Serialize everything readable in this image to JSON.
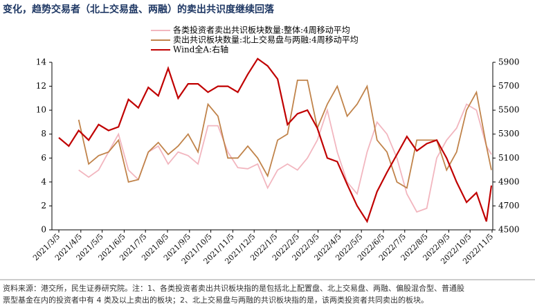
{
  "chart_data": {
    "type": "line",
    "title": "变化，趋势交易者（北上交易盘、两融）的卖出共识度继续回落",
    "footnote": [
      "资料来源：港交所，民生证券研究院。注：1、各类投资者卖出共识板块指的是包括北上配置盘、北上交易盘、两融、偏股混合型、普通股",
      "票型基金在内的投资者中有 4 类及以上卖出的板块；2、北上交易盘与两融的共识板块指的是，该两类投资者共同卖出的板块。"
    ],
    "x": [
      "2021/3/5",
      "2021/3/19",
      "2021/4/2",
      "2021/4/16",
      "2021/4/30",
      "2021/5/14",
      "2021/5/28",
      "2021/6/11",
      "2021/6/25",
      "2021/7/9",
      "2021/7/23",
      "2021/8/6",
      "2021/8/20",
      "2021/9/3",
      "2021/9/17",
      "2021/10/1",
      "2021/10/15",
      "2021/10/29",
      "2021/11/12",
      "2021/11/26",
      "2021/12/10",
      "2021/12/24",
      "2022/1/7",
      "2022/1/21",
      "2022/2/4",
      "2022/2/18",
      "2022/3/4",
      "2022/3/18",
      "2022/4/1",
      "2022/4/15",
      "2022/4/29",
      "2022/5/13",
      "2022/5/27",
      "2022/6/10",
      "2022/6/24",
      "2022/7/8",
      "2022/7/22",
      "2022/8/5",
      "2022/8/19",
      "2022/9/2",
      "2022/9/16",
      "2022/9/30",
      "2022/10/14",
      "2022/10/28",
      "2022/11/4"
    ],
    "xlim": [
      "2021/3/5",
      "2022/11/5"
    ],
    "xticks": [
      "2021/3/5",
      "2021/4/5",
      "2021/5/5",
      "2021/6/5",
      "2021/7/5",
      "2021/8/5",
      "2021/9/5",
      "2021/10/5",
      "2021/11/5",
      "2021/12/5",
      "2022/1/5",
      "2022/2/5",
      "2022/3/5",
      "2022/4/5",
      "2022/5/5",
      "2022/6/5",
      "2022/7/5",
      "2022/8/5",
      "2022/9/5",
      "2022/10/5",
      "2022/11/5"
    ],
    "ylim": [
      0,
      14
    ],
    "yticks": [
      0,
      2,
      4,
      6,
      8,
      10,
      12,
      14
    ],
    "y2lim": [
      4500,
      5900
    ],
    "y2ticks": [
      4500,
      4700,
      4900,
      5100,
      5300,
      5500,
      5700,
      5900
    ],
    "series": [
      {
        "name": "各类投资者卖出共识板块数量:整体:4周移动平均",
        "color": "#f2b6bf",
        "values": [
          null,
          null,
          5.0,
          4.4,
          5.0,
          6.5,
          8.0,
          5.0,
          4.2,
          6.5,
          7.0,
          5.5,
          6.5,
          6.2,
          5.5,
          8.7,
          8.7,
          6.5,
          5.2,
          5.1,
          5.5,
          3.5,
          5.0,
          5.5,
          5.0,
          6.0,
          7.5,
          10.0,
          6.5,
          4.0,
          3.0,
          6.5,
          9.0,
          8.0,
          6.0,
          3.0,
          1.5,
          1.8,
          6.0,
          7.5,
          8.5,
          10.5,
          10.0,
          7.0,
          6.3
        ]
      },
      {
        "name": "卖出共识板块数量:北上交易盘与两融:4周移动平均",
        "color": "#c0834a",
        "values": [
          null,
          null,
          9.2,
          5.5,
          6.2,
          6.5,
          7.5,
          4.0,
          4.2,
          6.5,
          7.3,
          6.3,
          7.0,
          8.0,
          6.5,
          10.5,
          9.5,
          6.0,
          6.0,
          7.0,
          6.0,
          4.5,
          7.5,
          8.0,
          12.5,
          12.5,
          8.5,
          10.5,
          12.0,
          9.5,
          10.5,
          12.0,
          7.5,
          6.5,
          4.0,
          3.5,
          7.5,
          7.5,
          7.5,
          5.0,
          6.5,
          10.0,
          11.5,
          7.0,
          5.0
        ]
      },
      {
        "name": "Wind全A:右轴",
        "color": "#c00000",
        "axis": "y2",
        "values": [
          5270,
          5200,
          5330,
          5250,
          5380,
          5330,
          5360,
          5590,
          5520,
          5690,
          5620,
          5850,
          5600,
          5720,
          5720,
          5650,
          5700,
          5700,
          5650,
          5800,
          5930,
          5870,
          5760,
          5380,
          5470,
          5500,
          5350,
          5100,
          5070,
          4880,
          4700,
          4570,
          4820,
          4980,
          5130,
          5280,
          5160,
          5220,
          5250,
          5100,
          4900,
          4730,
          4810,
          4570,
          4870
        ]
      }
    ]
  }
}
